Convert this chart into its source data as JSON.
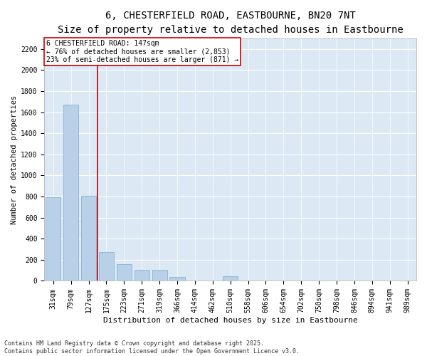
{
  "title": "6, CHESTERFIELD ROAD, EASTBOURNE, BN20 7NT",
  "subtitle": "Size of property relative to detached houses in Eastbourne",
  "xlabel": "Distribution of detached houses by size in Eastbourne",
  "ylabel": "Number of detached properties",
  "bar_color": "#b8d0e8",
  "bar_edge_color": "#7aaac8",
  "background_color": "#dce9f5",
  "grid_color": "#ffffff",
  "vline_color": "#cc0000",
  "annotation_text": "6 CHESTERFIELD ROAD: 147sqm\n← 76% of detached houses are smaller (2,853)\n23% of semi-detached houses are larger (871) →",
  "annotation_box_color": "#cc0000",
  "categories": [
    "31sqm",
    "79sqm",
    "127sqm",
    "175sqm",
    "223sqm",
    "271sqm",
    "319sqm",
    "366sqm",
    "414sqm",
    "462sqm",
    "510sqm",
    "558sqm",
    "606sqm",
    "654sqm",
    "702sqm",
    "750sqm",
    "798sqm",
    "846sqm",
    "894sqm",
    "941sqm",
    "989sqm"
  ],
  "values": [
    790,
    1670,
    810,
    270,
    160,
    105,
    105,
    40,
    0,
    0,
    45,
    0,
    0,
    0,
    0,
    0,
    0,
    0,
    0,
    0,
    0
  ],
  "vline_pos": 2.5,
  "ylim": [
    0,
    2300
  ],
  "yticks": [
    0,
    200,
    400,
    600,
    800,
    1000,
    1200,
    1400,
    1600,
    1800,
    2000,
    2200
  ],
  "footnote": "Contains HM Land Registry data © Crown copyright and database right 2025.\nContains public sector information licensed under the Open Government Licence v3.0.",
  "fig_width": 6.0,
  "fig_height": 5.0,
  "title_fontsize": 10,
  "subtitle_fontsize": 8.5,
  "ylabel_fontsize": 7.5,
  "xlabel_fontsize": 8,
  "tick_fontsize": 7,
  "annotation_fontsize": 7,
  "footnote_fontsize": 6
}
